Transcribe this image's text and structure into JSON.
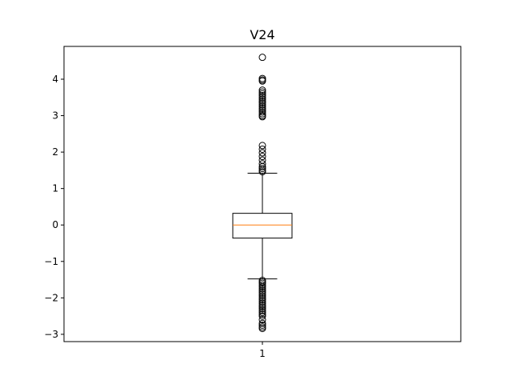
{
  "chart_data": {
    "type": "box",
    "title": "V24",
    "xlabel": "",
    "ylabel": "",
    "ylim": [
      -3.2,
      4.9
    ],
    "categories": [
      "1"
    ],
    "yticks": [
      -3,
      -2,
      -1,
      0,
      1,
      2,
      3,
      4
    ],
    "box": {
      "whisker_low": -1.48,
      "q1": -0.36,
      "median": 0.0,
      "q3": 0.32,
      "whisker_high": 1.42
    },
    "outliers": [
      4.6,
      4.02,
      3.98,
      3.95,
      3.7,
      3.65,
      3.6,
      3.55,
      3.5,
      3.45,
      3.4,
      3.35,
      3.3,
      3.25,
      3.2,
      3.15,
      3.1,
      3.05,
      3.0,
      2.97,
      2.18,
      2.08,
      1.98,
      1.88,
      1.78,
      1.68,
      1.6,
      1.55,
      1.5,
      1.46,
      -1.52,
      -1.56,
      -1.6,
      -1.65,
      -1.7,
      -1.75,
      -1.8,
      -1.85,
      -1.9,
      -1.95,
      -2.0,
      -2.05,
      -2.1,
      -2.15,
      -2.2,
      -2.25,
      -2.3,
      -2.35,
      -2.4,
      -2.45,
      -2.5,
      -2.6,
      -2.7,
      -2.75,
      -2.8,
      -2.84
    ],
    "colors": {
      "median": "#ff7f0e",
      "box": "#000000",
      "outlier": "#000000"
    }
  }
}
